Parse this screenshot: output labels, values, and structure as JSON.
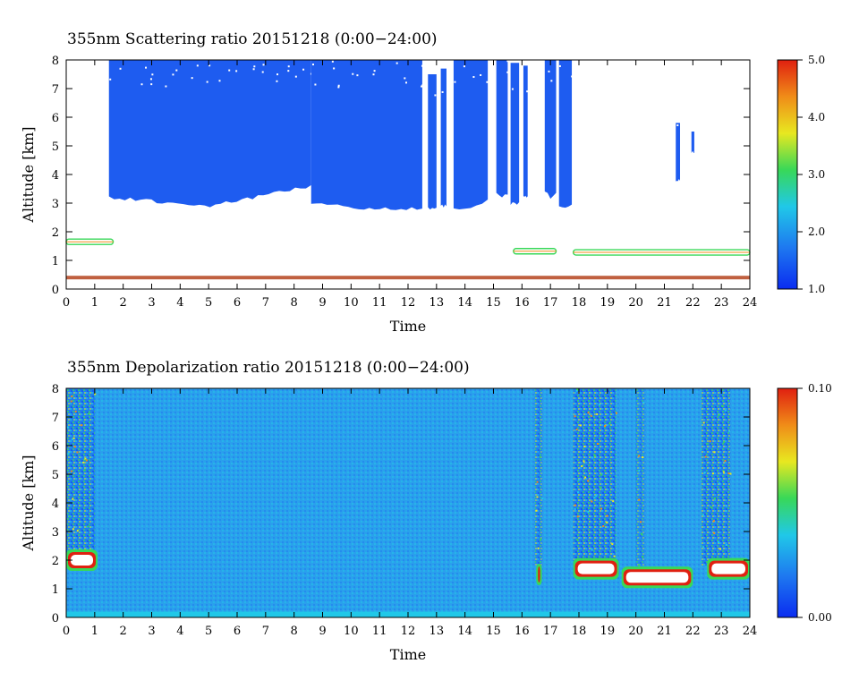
{
  "chart_data": [
    {
      "type": "heatmap",
      "title": "355nm Scattering ratio  20151218 (0:00−24:00)",
      "xlabel": "Time",
      "ylabel": "Altitude [km]",
      "xlim": [
        0,
        24
      ],
      "ylim": [
        0,
        8
      ],
      "xticks": [
        "0",
        "1",
        "2",
        "3",
        "4",
        "5",
        "6",
        "7",
        "8",
        "9",
        "10",
        "11",
        "12",
        "13",
        "14",
        "15",
        "16",
        "17",
        "18",
        "19",
        "20",
        "21",
        "22",
        "23",
        "24"
      ],
      "yticks": [
        "0",
        "1",
        "2",
        "3",
        "4",
        "5",
        "6",
        "7",
        "8"
      ],
      "colorbar": {
        "min": 1.0,
        "max": 5.0,
        "tick_labels": [
          "1.0",
          "2.0",
          "3.0",
          "4.0",
          "5.0"
        ]
      },
      "colormap": [
        "#0a2cf0",
        "#1e78f0",
        "#20c8e8",
        "#38d858",
        "#e8e820",
        "#f08c18",
        "#e02010"
      ],
      "cloud_regions": [
        {
          "t0": 1.5,
          "t1": 8.6,
          "base_start": 3.2,
          "base_mid": 2.9,
          "base_end": 3.6,
          "top": 8.0
        },
        {
          "t0": 8.6,
          "t1": 12.5,
          "base_start": 3.0,
          "base_mid": 2.8,
          "base_end": 2.8,
          "top": 8.0
        },
        {
          "t0": 12.7,
          "t1": 13.0,
          "base_start": 2.8,
          "base_mid": 2.8,
          "base_end": 2.8,
          "top": 7.5
        },
        {
          "t0": 13.15,
          "t1": 13.35,
          "base_start": 2.9,
          "base_mid": 2.9,
          "base_end": 2.9,
          "top": 7.7
        },
        {
          "t0": 13.6,
          "t1": 14.8,
          "base_start": 2.8,
          "base_mid": 2.8,
          "base_end": 3.1,
          "top": 8.0
        },
        {
          "t0": 15.1,
          "t1": 15.5,
          "base_start": 3.3,
          "base_mid": 3.2,
          "base_end": 3.3,
          "top": 8.0
        },
        {
          "t0": 15.6,
          "t1": 15.9,
          "base_start": 3.0,
          "base_mid": 3.0,
          "base_end": 3.0,
          "top": 7.9
        },
        {
          "t0": 16.05,
          "t1": 16.2,
          "base_start": 3.2,
          "base_mid": 3.2,
          "base_end": 3.2,
          "top": 7.8
        },
        {
          "t0": 16.8,
          "t1": 17.2,
          "base_start": 3.4,
          "base_mid": 3.2,
          "base_end": 3.3,
          "top": 8.0
        },
        {
          "t0": 17.3,
          "t1": 17.75,
          "base_start": 2.9,
          "base_mid": 2.9,
          "base_end": 2.9,
          "top": 8.0
        },
        {
          "t0": 21.4,
          "t1": 21.55,
          "base_start": 3.8,
          "base_mid": 3.8,
          "base_end": 3.8,
          "top": 5.8
        },
        {
          "t0": 21.95,
          "t1": 22.05,
          "base_start": 4.8,
          "base_mid": 4.8,
          "base_end": 4.8,
          "top": 5.5
        }
      ],
      "aerosol_layers": [
        {
          "t0": 0.0,
          "t1": 1.65,
          "alt": 1.65
        },
        {
          "t0": 15.7,
          "t1": 17.2,
          "alt": 1.32
        },
        {
          "t0": 17.8,
          "t1": 24.0,
          "alt": 1.28
        }
      ],
      "surface_band_altitude": 0.4
    },
    {
      "type": "heatmap",
      "title": "355nm Depolarization ratio  20151218 (0:00−24:00)",
      "xlabel": "Time",
      "ylabel": "Altitude [km]",
      "xlim": [
        0,
        24
      ],
      "ylim": [
        0,
        8
      ],
      "xticks": [
        "0",
        "1",
        "2",
        "3",
        "4",
        "5",
        "6",
        "7",
        "8",
        "9",
        "10",
        "11",
        "12",
        "13",
        "14",
        "15",
        "16",
        "17",
        "18",
        "19",
        "20",
        "21",
        "22",
        "23",
        "24"
      ],
      "yticks": [
        "0",
        "1",
        "2",
        "3",
        "4",
        "5",
        "6",
        "7",
        "8"
      ],
      "colorbar": {
        "min": 0.0,
        "max": 0.1,
        "tick_labels": [
          "0.00",
          "0.10"
        ]
      },
      "colormap": [
        "#0a2cf0",
        "#1e78f0",
        "#20c8e8",
        "#38d858",
        "#e8e820",
        "#f08c18",
        "#e02010"
      ],
      "noisy_columns": [
        {
          "t0": 0.0,
          "t1": 1.0,
          "level": 0.55
        },
        {
          "t0": 16.45,
          "t1": 16.7,
          "level": 0.45
        },
        {
          "t0": 17.8,
          "t1": 19.3,
          "level": 0.6
        },
        {
          "t0": 20.0,
          "t1": 20.3,
          "level": 0.3
        },
        {
          "t0": 22.3,
          "t1": 23.3,
          "level": 0.55
        }
      ],
      "high_depol_blobs": [
        {
          "t0": 0.0,
          "t1": 1.1,
          "alt": 2.0
        },
        {
          "t0": 16.5,
          "t1": 16.7,
          "alt": 1.5
        },
        {
          "t0": 17.8,
          "t1": 19.4,
          "alt": 1.7
        },
        {
          "t0": 19.5,
          "t1": 22.0,
          "alt": 1.4
        },
        {
          "t0": 22.5,
          "t1": 24.0,
          "alt": 1.7
        }
      ]
    }
  ]
}
